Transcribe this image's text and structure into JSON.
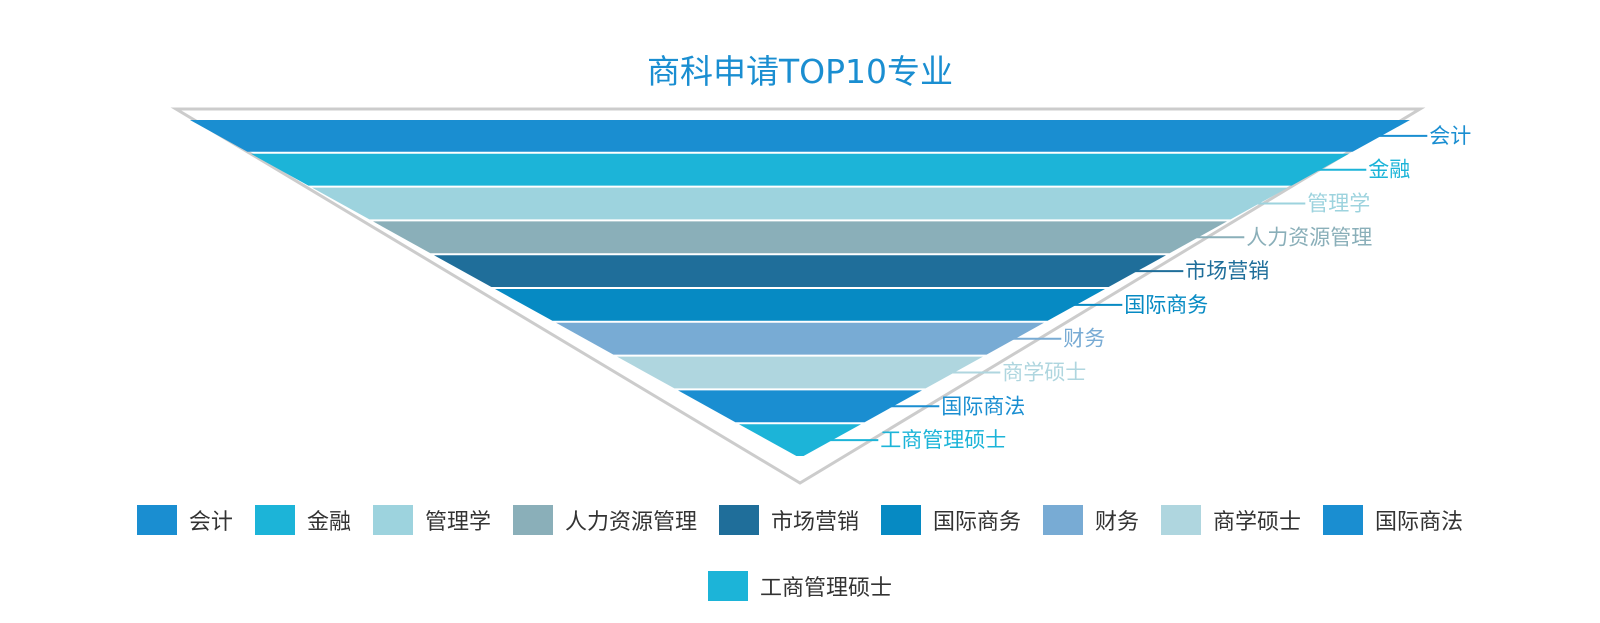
{
  "chart_data": {
    "type": "funnel",
    "title": "商科申请TOP10专业",
    "categories": [
      "会计",
      "金融",
      "管理学",
      "人力资源管理",
      "市场营销",
      "国际商务",
      "财务",
      "商学硕士",
      "国际商法",
      "工商管理硕士"
    ],
    "values": [
      10,
      9,
      8,
      7,
      6,
      5,
      4,
      3,
      2,
      1
    ],
    "colors": [
      "#1a8ed1",
      "#1cb4d8",
      "#9dd3de",
      "#8aafb9",
      "#1f6e9a",
      "#068ac3",
      "#78abd4",
      "#afd6df",
      "#1a8ed1",
      "#1cb4d8"
    ],
    "label_colors": [
      "#1a8ed1",
      "#1cb4d8",
      "#9dd3de",
      "#8aafb9",
      "#1f6e9a",
      "#068ac3",
      "#78abd4",
      "#afd6df",
      "#1a8ed1",
      "#1cb4d8"
    ],
    "legend_position": "bottom",
    "outline_color": "#cccccc",
    "title_color": "#1a8ed1"
  }
}
